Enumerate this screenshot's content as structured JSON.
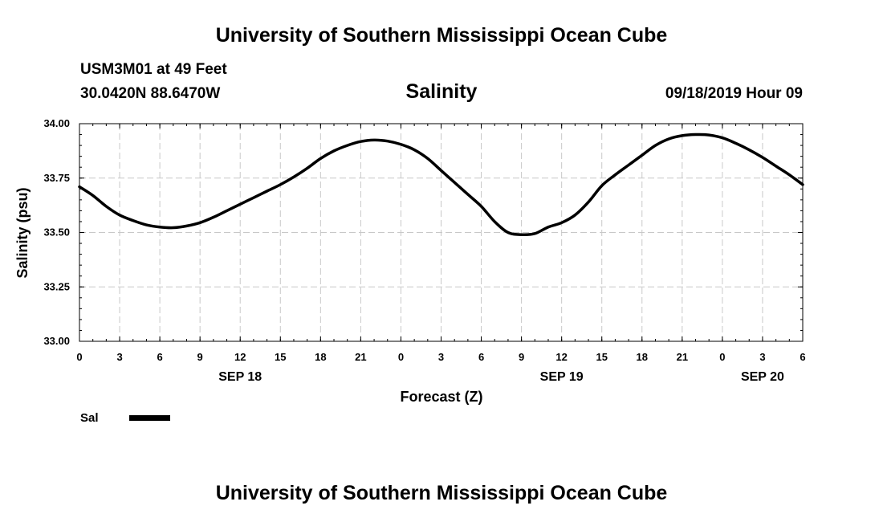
{
  "header": {
    "title": "University of Southern Mississippi Ocean Cube",
    "station": "USM3M01 at 49 Feet",
    "coordinates": "30.0420N 88.6470W",
    "datetime": "09/18/2019 Hour 09"
  },
  "footer": {
    "title": "University of Southern Mississippi Ocean Cube"
  },
  "chart_data": {
    "type": "line",
    "title": "Salinity",
    "xlabel": "Forecast (Z)",
    "ylabel": "Salinity (psu)",
    "ylim": [
      33.0,
      34.0
    ],
    "yticks": [
      "33.00",
      "33.25",
      "33.50",
      "33.75",
      "34.00"
    ],
    "xlim_hours": [
      0,
      54
    ],
    "xtick_step_hours": 3,
    "xtick_labels": [
      "0",
      "3",
      "6",
      "9",
      "12",
      "15",
      "18",
      "21",
      "0",
      "3",
      "6",
      "9",
      "12",
      "15",
      "18",
      "21",
      "0",
      "3",
      "6"
    ],
    "date_labels": [
      {
        "hour": 12,
        "label": "SEP 18"
      },
      {
        "hour": 36,
        "label": "SEP 19"
      },
      {
        "hour": 51,
        "label": "SEP 20"
      }
    ],
    "grid": true,
    "series": [
      {
        "name": "Sal",
        "color": "#000000",
        "x": [
          0,
          1,
          2,
          3,
          4,
          5,
          6,
          7,
          8,
          9,
          10,
          11,
          12,
          13,
          14,
          15,
          16,
          17,
          18,
          19,
          20,
          21,
          22,
          23,
          24,
          25,
          26,
          27,
          28,
          29,
          30,
          31,
          32,
          33,
          34,
          35,
          36,
          37,
          38,
          39,
          40,
          41,
          42,
          43,
          44,
          45,
          46,
          47,
          48,
          49,
          50,
          51,
          52,
          53,
          54
        ],
        "values": [
          33.71,
          33.67,
          33.62,
          33.58,
          33.555,
          33.535,
          33.525,
          33.522,
          33.53,
          33.545,
          33.57,
          33.6,
          33.63,
          33.66,
          33.69,
          33.72,
          33.755,
          33.795,
          33.84,
          33.875,
          33.9,
          33.918,
          33.925,
          33.92,
          33.905,
          33.88,
          33.84,
          33.785,
          33.73,
          33.675,
          33.62,
          33.55,
          33.5,
          33.49,
          33.495,
          33.525,
          33.545,
          33.58,
          33.64,
          33.715,
          33.765,
          33.81,
          33.855,
          33.9,
          33.93,
          33.945,
          33.95,
          33.948,
          33.935,
          33.91,
          33.88,
          33.845,
          33.805,
          33.765,
          33.72
        ]
      }
    ],
    "legend": {
      "label": "Sal",
      "placement": "bottom-left"
    }
  }
}
